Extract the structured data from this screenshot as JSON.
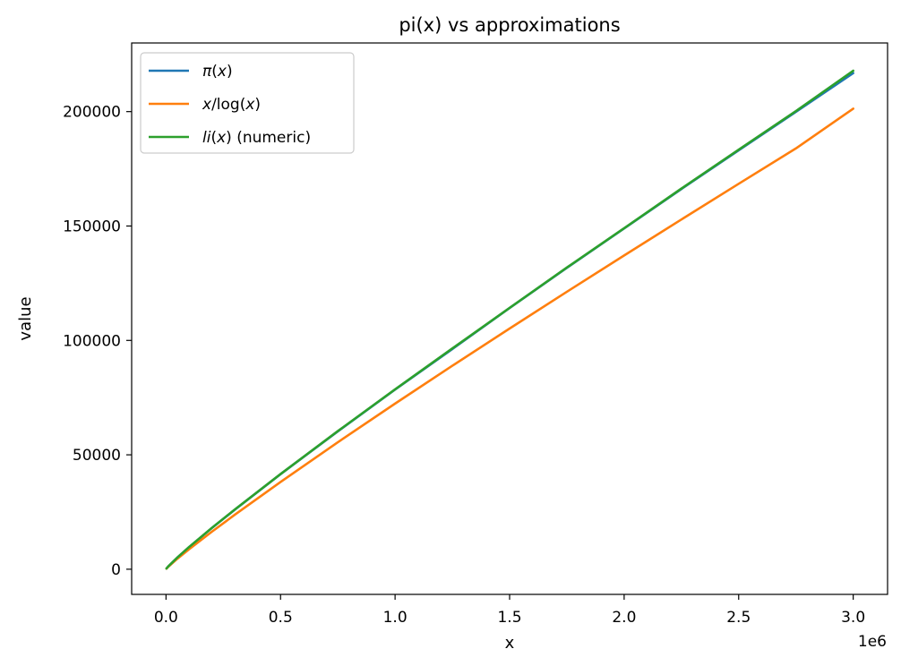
{
  "chart_data": {
    "type": "line",
    "title": "pi(x) vs approximations",
    "xlabel": "x",
    "ylabel": "value",
    "x_offset_label": "1e6",
    "xlim": [
      -0.15,
      3.15
    ],
    "ylim": [
      -11000,
      230000
    ],
    "x_ticks": [
      0.0,
      0.5,
      1.0,
      1.5,
      2.0,
      2.5,
      3.0
    ],
    "x_tick_labels": [
      "0.0",
      "0.5",
      "1.0",
      "1.5",
      "2.0",
      "2.5",
      "3.0"
    ],
    "y_ticks": [
      0,
      50000,
      100000,
      150000,
      200000
    ],
    "y_tick_labels": [
      "0",
      "50000",
      "100000",
      "150000",
      "200000"
    ],
    "grid": false,
    "legend_position": "top-left",
    "x": [
      0.002,
      0.01,
      0.05,
      0.1,
      0.2,
      0.3,
      0.5,
      0.75,
      1.0,
      1.25,
      1.5,
      1.75,
      2.0,
      2.25,
      2.5,
      2.75,
      3.0
    ],
    "series": [
      {
        "name_parts": [
          {
            "t": "π",
            "it": true
          },
          {
            "t": "(",
            "it": false
          },
          {
            "t": "x",
            "it": true
          },
          {
            "t": ")",
            "it": false
          }
        ],
        "color": "#1f77b4",
        "values": [
          303,
          1229,
          5133,
          9592,
          17984,
          25997,
          41538,
          60238,
          78498,
          96241,
          114155,
          131723,
          148933,
          166174,
          183072,
          199898,
          216816
        ]
      },
      {
        "name_parts": [
          {
            "t": "x",
            "it": true
          },
          {
            "t": "/log(",
            "it": false
          },
          {
            "t": "x",
            "it": true
          },
          {
            "t": ")",
            "it": false
          }
        ],
        "color": "#ff7f0e",
        "values": [
          263,
          1086,
          4621,
          8686,
          16385,
          23788,
          38103,
          55492,
          72382,
          88922,
          105196,
          121256,
          137135,
          152861,
          168452,
          183923,
          201285
        ]
      },
      {
        "name_parts": [
          {
            "t": "li",
            "it": true
          },
          {
            "t": "(",
            "it": false
          },
          {
            "t": "x",
            "it": true
          },
          {
            "t": ") (numeric)",
            "it": false
          }
        ],
        "color": "#2ca02c",
        "values": [
          313,
          1246,
          5166,
          9629,
          18040,
          26068,
          41606,
          60363,
          78627,
          96498,
          114237,
          131859,
          149055,
          166378,
          183388,
          200240,
          217852
        ]
      }
    ]
  },
  "colors": {
    "axes": "#000000",
    "background": "#ffffff"
  }
}
